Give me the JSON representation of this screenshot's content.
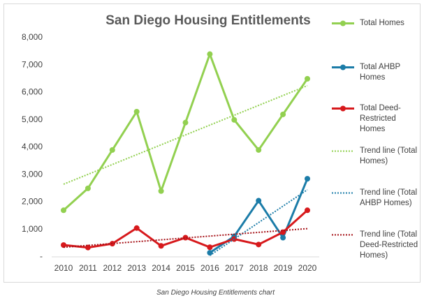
{
  "chart_data": {
    "type": "line",
    "title": "San Diego Housing Entitlements",
    "caption": "San Diego Housing Entitlements chart",
    "categories": [
      "2010",
      "2011",
      "2012",
      "2013",
      "2014",
      "2015",
      "2016",
      "2017",
      "2018",
      "2019",
      "2020"
    ],
    "ylim": [
      0,
      8000
    ],
    "yticks": [
      {
        "value": 0,
        "label": "-"
      },
      {
        "value": 1000,
        "label": "1,000"
      },
      {
        "value": 2000,
        "label": "2,000"
      },
      {
        "value": 3000,
        "label": "3,000"
      },
      {
        "value": 4000,
        "label": "4,000"
      },
      {
        "value": 5000,
        "label": "5,000"
      },
      {
        "value": 6000,
        "label": "6,000"
      },
      {
        "value": 7000,
        "label": "7,000"
      },
      {
        "value": 8000,
        "label": "8,000"
      }
    ],
    "grid": false,
    "legend": "right",
    "series": [
      {
        "name": "Total Homes",
        "color": "#92d050",
        "line_style": "solid",
        "markers": true,
        "values": [
          1700,
          2500,
          3900,
          5300,
          2400,
          4900,
          7400,
          5000,
          3900,
          5200,
          6500
        ]
      },
      {
        "name": "Total AHBP Homes",
        "color": "#1b7ca8",
        "line_style": "solid",
        "markers": true,
        "values": [
          null,
          null,
          null,
          null,
          null,
          null,
          150,
          750,
          2050,
          700,
          2850
        ]
      },
      {
        "name": "Total Deed-Restricted Homes",
        "color": "#d7191c",
        "line_style": "solid",
        "markers": true,
        "values": [
          430,
          340,
          480,
          1050,
          400,
          700,
          350,
          650,
          450,
          900,
          1700
        ]
      },
      {
        "name": "Trend line (Total Homes)",
        "color": "#92d050",
        "line_style": "dotted",
        "markers": false,
        "values": [
          2650,
          3010,
          3370,
          3730,
          4090,
          4450,
          4810,
          5170,
          5530,
          5890,
          6250
        ]
      },
      {
        "name": "Trend line (Total AHBP Homes)",
        "color": "#1b7ca8",
        "line_style": "dotted",
        "markers": false,
        "values": [
          null,
          null,
          null,
          null,
          null,
          null,
          50,
          650,
          1250,
          1850,
          2450
        ]
      },
      {
        "name": "Trend line (Total Deed-Restricted Homes)",
        "color": "#a50f15",
        "line_style": "dotted",
        "markers": false,
        "values": [
          350,
          418,
          486,
          554,
          622,
          690,
          758,
          826,
          894,
          962,
          1030
        ]
      }
    ]
  }
}
